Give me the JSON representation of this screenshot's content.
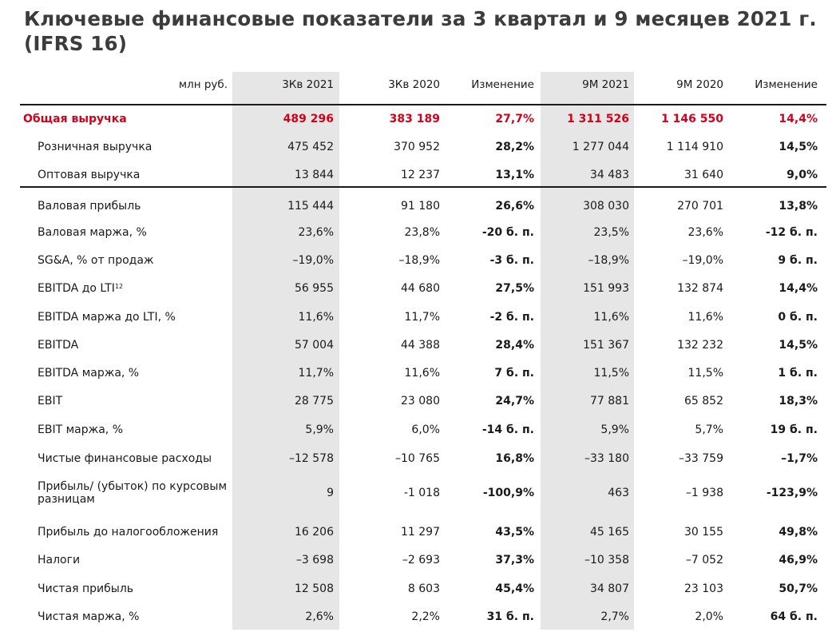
{
  "title": "Ключевые финансовые показатели за 3 квартал и 9 месяцев 2021 г. (IFRS 16)",
  "header": {
    "unit": "млн руб.",
    "cols": [
      "3Кв 2021",
      "3Кв 2020",
      "Изменение",
      "9М 2021",
      "9М 2020",
      "Изменение"
    ]
  },
  "revenue": {
    "label": "Общая выручка",
    "v": [
      "489 296",
      "383 189",
      "27,7%",
      "1 311 526",
      "1 146 550",
      "14,4%"
    ]
  },
  "rows": [
    {
      "label": "Розничная выручка",
      "v": [
        "475 452",
        "370 952",
        "28,2%",
        "1 277 044",
        "1 114 910",
        "14,5%"
      ]
    },
    {
      "label": "Оптовая выручка",
      "v": [
        "13 844",
        "12 237",
        "13,1%",
        "34 483",
        "31 640",
        "9,0%"
      ]
    },
    {
      "label": "Валовая прибыль",
      "v": [
        "115 444",
        "91 180",
        "26,6%",
        "308 030",
        "270 701",
        "13,8%"
      ]
    },
    {
      "label": "Валовая маржа, %",
      "v": [
        "23,6%",
        "23,8%",
        "-20 б. п.",
        "23,5%",
        "23,6%",
        "-12 б. п."
      ]
    },
    {
      "label": "SG&A, % от продаж",
      "v": [
        "–19,0%",
        "–18,9%",
        "-3 б. п.",
        "–18,9%",
        "–19,0%",
        "9 б. п."
      ]
    },
    {
      "label": "EBITDA до LTI",
      "sup": "12",
      "v": [
        "56 955",
        "44 680",
        "27,5%",
        "151 993",
        "132 874",
        "14,4%"
      ]
    },
    {
      "label": "EBITDA маржа до LTI, %",
      "v": [
        "11,6%",
        "11,7%",
        "-2 б. п.",
        "11,6%",
        "11,6%",
        "0 б. п."
      ]
    },
    {
      "label": "EBITDA",
      "v": [
        "57 004",
        "44 388",
        "28,4%",
        "151 367",
        "132 232",
        "14,5%"
      ]
    },
    {
      "label": "EBITDA маржа, %",
      "v": [
        "11,7%",
        "11,6%",
        "7 б. п.",
        "11,5%",
        "11,5%",
        "1 б. п."
      ]
    },
    {
      "label": "EBIT",
      "v": [
        "28 775",
        "23 080",
        "24,7%",
        "77 881",
        "65 852",
        "18,3%"
      ]
    },
    {
      "label": "EBIT маржа, %",
      "v": [
        "5,9%",
        "6,0%",
        "-14 б. п.",
        "5,9%",
        "5,7%",
        "19 б. п."
      ]
    },
    {
      "label": "Чистые финансовые расходы",
      "v": [
        "–12 578",
        "–10 765",
        "16,8%",
        "–33 180",
        "–33 759",
        "–1,7%"
      ]
    },
    {
      "label": "Прибыль/ (убыток) по курсовым разницам",
      "v": [
        "9",
        "-1 018",
        "-100,9%",
        "463",
        "–1 938",
        "-123,9%"
      ]
    },
    {
      "label": "Прибыль до налогообложения",
      "v": [
        "16 206",
        "11 297",
        "43,5%",
        "45 165",
        "30 155",
        "49,8%"
      ]
    },
    {
      "label": "Налоги",
      "v": [
        "–3 698",
        "–2 693",
        "37,3%",
        "–10 358",
        "–7 052",
        "46,9%"
      ]
    },
    {
      "label": "Чистая прибыль",
      "v": [
        "12 508",
        "8 603",
        "45,4%",
        "34 807",
        "23 103",
        "50,7%"
      ]
    },
    {
      "label": "Чистая маржа, %",
      "v": [
        "2,6%",
        "2,2%",
        "31 б. п.",
        "2,7%",
        "2,0%",
        "64 б. п."
      ]
    }
  ]
}
